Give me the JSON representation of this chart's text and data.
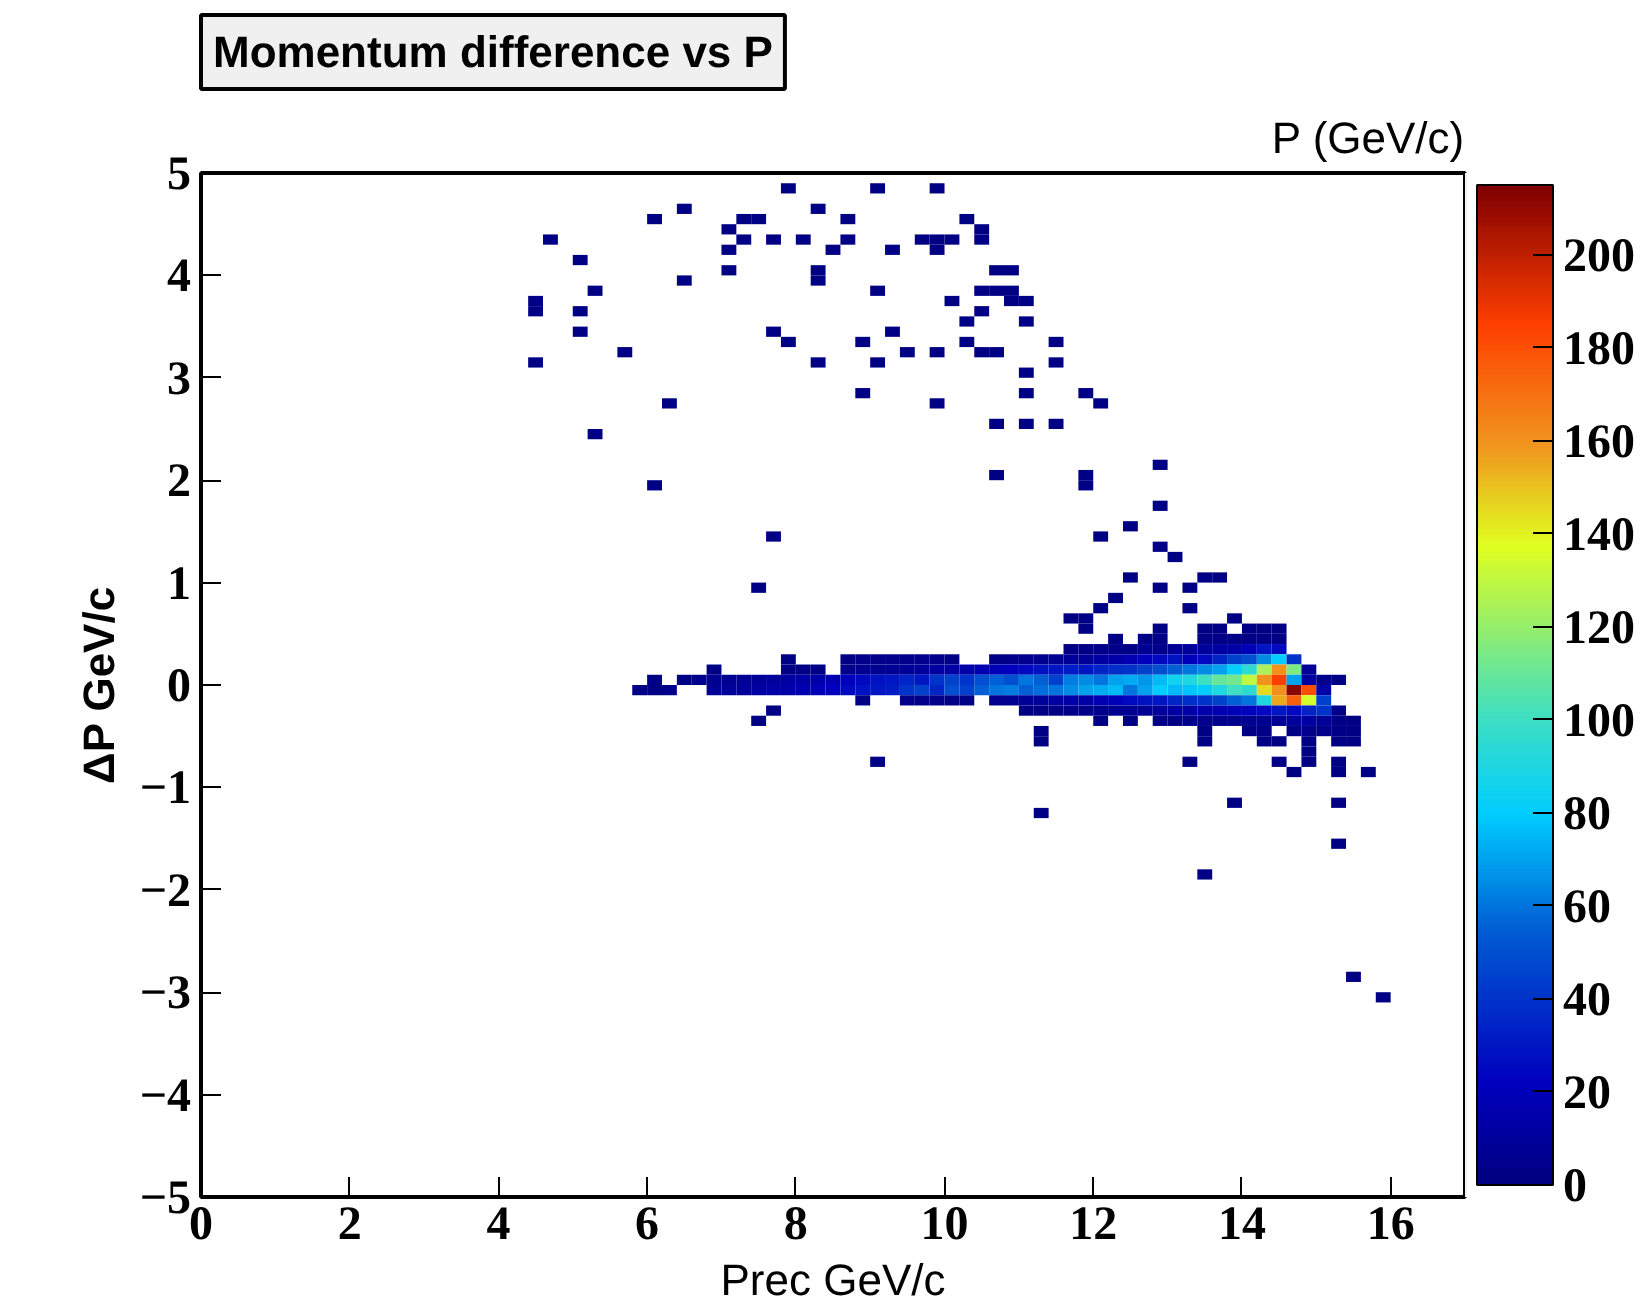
{
  "chart_data": {
    "type": "scatter",
    "title": "Momentum difference vs P",
    "annotations": [
      "P (GeV/c)"
    ],
    "xlabel": "Prec GeV/c",
    "ylabel": "ΔP GeV/c",
    "xlim": [
      0,
      17
    ],
    "ylim": [
      -5,
      5
    ],
    "xticks": [
      0,
      2,
      4,
      6,
      8,
      10,
      12,
      14,
      16
    ],
    "yticks": [
      -5,
      -4,
      -3,
      -2,
      -1,
      0,
      1,
      2,
      3,
      4,
      5
    ],
    "clim": [
      0,
      215
    ],
    "cticks": [
      0,
      20,
      40,
      60,
      80,
      100,
      120,
      140,
      160,
      180,
      200
    ],
    "marker": "square",
    "x": [
      7.9,
      9.1,
      9.9,
      6.1,
      6.5,
      8.3,
      7.3,
      7.5,
      8.7,
      10.3,
      4.7,
      7.1,
      7.3,
      7.7,
      8.1,
      8.7,
      9.7,
      9.9,
      10.1,
      10.5,
      10.5,
      5.1,
      7.1,
      8.5,
      9.3,
      9.9,
      7.1,
      8.3,
      8.3,
      10.7,
      10.9,
      6.5,
      5.3,
      9.1,
      10.5,
      10.7,
      10.9,
      10.1,
      10.9,
      11.1,
      4.5,
      4.5,
      5.1,
      10.5,
      10.3,
      11.1,
      5.1,
      7.7,
      9.3,
      5.7,
      7.9,
      8.9,
      10.3,
      11.5,
      4.5,
      8.3,
      9.1,
      9.5,
      9.9,
      10.5,
      10.7,
      11.5,
      11.1,
      8.9,
      11.1,
      11.9,
      6.3,
      9.9,
      12.1,
      10.7,
      11.1,
      11.5,
      5.3,
      12.9,
      10.7,
      11.9,
      11.9,
      6.1,
      12.9,
      12.5,
      7.7,
      12.1,
      12.9,
      13.1,
      7.5,
      12.5,
      13.5,
      13.7,
      12.9,
      13.3,
      12.3,
      12.1,
      13.3,
      11.7,
      11.9,
      13.9,
      11.9,
      12.9,
      13.5,
      13.7,
      14.1,
      14.3,
      14.5,
      14.9,
      9.1,
      13.3,
      14.5,
      14.9,
      15.3,
      14.7,
      15.3,
      15.7,
      13.9,
      15.3,
      11.3,
      15.3,
      13.5,
      15.5,
      15.9,
      12.3,
      12.7,
      12.9,
      13.5,
      13.7,
      13.9,
      14.1,
      14.3,
      14.5,
      11.7,
      11.9,
      12.1,
      12.3,
      12.5,
      12.7,
      12.9,
      13.1,
      13.3,
      13.5,
      13.7,
      13.9,
      14.1,
      14.3,
      14.5,
      7.9,
      8.7,
      8.9,
      9.1,
      9.3,
      9.5,
      9.7,
      9.9,
      10.1,
      10.7,
      10.9,
      11.1,
      11.3,
      11.5,
      11.7,
      11.9,
      12.1,
      12.3,
      12.5,
      12.7,
      12.9,
      13.1,
      13.3,
      13.5,
      13.7,
      13.9,
      14.1,
      14.3,
      14.5,
      14.7,
      6.9,
      7.9,
      8.1,
      8.3,
      8.7,
      8.9,
      9.1,
      9.3,
      9.5,
      9.7,
      9.9,
      10.1,
      10.3,
      10.5,
      10.7,
      10.9,
      11.1,
      11.3,
      11.5,
      11.7,
      11.9,
      12.1,
      12.3,
      12.5,
      12.7,
      12.9,
      13.1,
      13.3,
      13.5,
      13.7,
      13.9,
      14.1,
      14.3,
      14.5,
      14.7,
      14.9,
      6.1,
      6.5,
      6.7,
      6.9,
      7.1,
      7.3,
      7.5,
      7.7,
      7.9,
      8.1,
      8.3,
      8.5,
      8.7,
      8.9,
      9.1,
      9.3,
      9.5,
      9.7,
      9.9,
      10.1,
      10.3,
      10.5,
      10.7,
      10.9,
      11.1,
      11.3,
      11.5,
      11.7,
      11.9,
      12.1,
      12.3,
      12.5,
      12.7,
      12.9,
      13.1,
      13.3,
      13.5,
      13.7,
      13.9,
      14.1,
      14.3,
      14.5,
      14.7,
      14.9,
      15.1,
      15.3,
      5.9,
      6.1,
      6.3,
      6.9,
      7.1,
      7.3,
      7.5,
      7.7,
      7.9,
      8.1,
      8.3,
      8.5,
      8.7,
      8.9,
      9.1,
      9.3,
      9.5,
      9.7,
      9.9,
      10.1,
      10.3,
      10.5,
      10.7,
      10.9,
      11.1,
      11.3,
      11.5,
      11.7,
      11.9,
      12.1,
      12.3,
      12.5,
      12.7,
      12.9,
      13.1,
      13.3,
      13.5,
      13.7,
      13.9,
      14.1,
      14.3,
      14.5,
      14.7,
      14.9,
      15.1,
      8.9,
      9.5,
      9.7,
      9.9,
      10.1,
      10.3,
      10.7,
      10.9,
      11.1,
      11.3,
      11.5,
      11.7,
      11.9,
      12.1,
      12.3,
      12.5,
      12.7,
      12.9,
      13.1,
      13.3,
      13.5,
      13.7,
      13.9,
      14.1,
      14.3,
      14.5,
      14.7,
      14.9,
      15.1,
      7.7,
      11.1,
      11.3,
      11.5,
      11.7,
      11.9,
      12.1,
      12.3,
      12.5,
      12.7,
      12.9,
      13.1,
      13.3,
      13.5,
      13.7,
      13.9,
      14.1,
      14.3,
      14.5,
      14.7,
      14.9,
      15.1,
      15.3,
      7.5,
      12.1,
      12.5,
      12.9,
      13.1,
      13.3,
      13.5,
      13.7,
      13.9,
      14.1,
      14.3,
      14.5,
      14.7,
      14.9,
      15.1,
      15.3,
      15.5,
      11.3,
      13.5,
      14.1,
      14.3,
      14.7,
      14.9,
      15.1,
      15.3,
      15.5,
      11.3,
      13.5,
      14.3,
      14.5,
      14.9,
      15.3,
      15.5
    ],
    "values": [
      4.85,
      4.85,
      4.85,
      4.55,
      4.65,
      4.65,
      4.55,
      4.55,
      4.55,
      4.55,
      4.35,
      4.45,
      4.35,
      4.35,
      4.35,
      4.35,
      4.35,
      4.35,
      4.35,
      4.45,
      4.35,
      4.15,
      4.25,
      4.25,
      4.25,
      4.25,
      4.05,
      4.05,
      3.95,
      4.05,
      4.05,
      3.95,
      3.85,
      3.85,
      3.85,
      3.85,
      3.85,
      3.75,
      3.75,
      3.75,
      3.75,
      3.65,
      3.65,
      3.65,
      3.55,
      3.55,
      3.45,
      3.45,
      3.45,
      3.25,
      3.35,
      3.35,
      3.35,
      3.35,
      3.15,
      3.15,
      3.15,
      3.25,
      3.25,
      3.25,
      3.25,
      3.15,
      3.05,
      2.85,
      2.85,
      2.85,
      2.75,
      2.75,
      2.75,
      2.55,
      2.55,
      2.55,
      2.45,
      2.15,
      2.05,
      2.05,
      1.95,
      1.95,
      1.75,
      1.55,
      1.45,
      1.45,
      1.35,
      1.25,
      0.95,
      1.05,
      1.05,
      1.05,
      0.95,
      0.95,
      0.85,
      0.75,
      0.75,
      0.65,
      0.65,
      0.65,
      0.55,
      0.55,
      0.55,
      0.55,
      0.55,
      0.55,
      0.55,
      -0.65,
      -0.75,
      -0.75,
      -0.75,
      -0.75,
      -0.75,
      -0.85,
      -0.85,
      -0.85,
      -1.15,
      -1.15,
      -1.25,
      -1.55,
      -1.85,
      -2.85,
      -3.05,
      0.45,
      0.45,
      0.45,
      0.45,
      0.45,
      0.45,
      0.45,
      0.45,
      0.45,
      0.35,
      0.35,
      0.35,
      0.35,
      0.35,
      0.35,
      0.35,
      0.35,
      0.35,
      0.35,
      0.35,
      0.35,
      0.35,
      0.35,
      0.35,
      0.25,
      0.25,
      0.25,
      0.25,
      0.25,
      0.25,
      0.25,
      0.25,
      0.25,
      0.25,
      0.25,
      0.25,
      0.25,
      0.25,
      0.25,
      0.25,
      0.25,
      0.25,
      0.25,
      0.25,
      0.25,
      0.25,
      0.25,
      0.25,
      0.25,
      0.25,
      0.25,
      0.25,
      0.25,
      0.25,
      0.15,
      0.15,
      0.15,
      0.15,
      0.15,
      0.15,
      0.15,
      0.15,
      0.15,
      0.15,
      0.15,
      0.15,
      0.15,
      0.15,
      0.15,
      0.15,
      0.15,
      0.15,
      0.15,
      0.15,
      0.15,
      0.15,
      0.15,
      0.15,
      0.15,
      0.15,
      0.15,
      0.15,
      0.15,
      0.15,
      0.15,
      0.15,
      0.15,
      0.15,
      0.15,
      0.15,
      0.05,
      0.05,
      0.05,
      0.05,
      0.05,
      0.05,
      0.05,
      0.05,
      0.05,
      0.05,
      0.05,
      0.05,
      0.05,
      0.05,
      0.05,
      0.05,
      0.05,
      0.05,
      0.05,
      0.05,
      0.05,
      0.05,
      0.05,
      0.05,
      0.05,
      0.05,
      0.05,
      0.05,
      0.05,
      0.05,
      0.05,
      0.05,
      0.05,
      0.05,
      0.05,
      0.05,
      0.05,
      0.05,
      0.05,
      0.05,
      0.05,
      0.05,
      0.05,
      0.05,
      0.05,
      0.05,
      -0.05,
      -0.05,
      -0.05,
      -0.05,
      -0.05,
      -0.05,
      -0.05,
      -0.05,
      -0.05,
      -0.05,
      -0.05,
      -0.05,
      -0.05,
      -0.05,
      -0.05,
      -0.05,
      -0.05,
      -0.05,
      -0.05,
      -0.05,
      -0.05,
      -0.05,
      -0.05,
      -0.05,
      -0.05,
      -0.05,
      -0.05,
      -0.05,
      -0.05,
      -0.05,
      -0.05,
      -0.05,
      -0.05,
      -0.05,
      -0.05,
      -0.05,
      -0.05,
      -0.05,
      -0.05,
      -0.05,
      -0.05,
      -0.05,
      -0.05,
      -0.05,
      -0.05,
      -0.15,
      -0.15,
      -0.15,
      -0.15,
      -0.15,
      -0.15,
      -0.15,
      -0.15,
      -0.15,
      -0.15,
      -0.15,
      -0.15,
      -0.15,
      -0.15,
      -0.15,
      -0.15,
      -0.15,
      -0.15,
      -0.15,
      -0.15,
      -0.15,
      -0.15,
      -0.15,
      -0.15,
      -0.15,
      -0.15,
      -0.15,
      -0.15,
      -0.15,
      -0.25,
      -0.25,
      -0.25,
      -0.25,
      -0.25,
      -0.25,
      -0.25,
      -0.25,
      -0.25,
      -0.25,
      -0.25,
      -0.25,
      -0.25,
      -0.25,
      -0.25,
      -0.25,
      -0.25,
      -0.25,
      -0.25,
      -0.25,
      -0.25,
      -0.25,
      -0.25,
      -0.35,
      -0.35,
      -0.35,
      -0.35,
      -0.35,
      -0.35,
      -0.35,
      -0.35,
      -0.35,
      -0.35,
      -0.35,
      -0.35,
      -0.35,
      -0.35,
      -0.35,
      -0.35,
      -0.35,
      -0.45,
      -0.45,
      -0.45,
      -0.45,
      -0.45,
      -0.45,
      -0.45,
      -0.45,
      -0.45,
      -0.55,
      -0.55,
      -0.55,
      -0.55,
      -0.55,
      -0.55,
      -0.55
    ],
    "cvalues": [
      2,
      2,
      2,
      2,
      2,
      2,
      2,
      2,
      2,
      2,
      2,
      2,
      2,
      2,
      2,
      2,
      2,
      2,
      2,
      2,
      2,
      2,
      2,
      2,
      2,
      2,
      2,
      2,
      2,
      2,
      2,
      2,
      2,
      2,
      2,
      2,
      2,
      2,
      2,
      2,
      2,
      2,
      2,
      2,
      2,
      2,
      2,
      2,
      2,
      2,
      2,
      2,
      2,
      2,
      2,
      2,
      2,
      2,
      2,
      2,
      2,
      2,
      2,
      2,
      2,
      2,
      2,
      2,
      2,
      2,
      2,
      2,
      2,
      2,
      2,
      2,
      2,
      2,
      2,
      2,
      2,
      2,
      2,
      2,
      2,
      2,
      2,
      2,
      2,
      2,
      2,
      2,
      2,
      2,
      2,
      2,
      2,
      2,
      2,
      2,
      2,
      2,
      2,
      2,
      2,
      2,
      2,
      2,
      2,
      2,
      2,
      2,
      2,
      2,
      2,
      2,
      2,
      2,
      2,
      3,
      3,
      3,
      3,
      3,
      3,
      3,
      3,
      3,
      3,
      3,
      5,
      4,
      3,
      6,
      5,
      8,
      10,
      10,
      12,
      15,
      20,
      30,
      25,
      2,
      3,
      4,
      4,
      4,
      4,
      5,
      4,
      3,
      3,
      4,
      5,
      6,
      7,
      8,
      10,
      12,
      15,
      18,
      22,
      25,
      28,
      20,
      25,
      35,
      45,
      50,
      65,
      80,
      40,
      2,
      3,
      3,
      2,
      5,
      6,
      7,
      8,
      9,
      10,
      12,
      14,
      15,
      18,
      20,
      22,
      25,
      28,
      30,
      32,
      30,
      35,
      38,
      40,
      45,
      50,
      55,
      60,
      65,
      70,
      80,
      95,
      125,
      160,
      115,
      8,
      3,
      3,
      5,
      6,
      6,
      8,
      9,
      10,
      12,
      14,
      15,
      18,
      22,
      25,
      28,
      30,
      35,
      30,
      40,
      45,
      40,
      50,
      55,
      50,
      60,
      55,
      45,
      62,
      65,
      60,
      70,
      72,
      68,
      75,
      85,
      90,
      100,
      110,
      112,
      130,
      160,
      185,
      70,
      12,
      5,
      3,
      3,
      3,
      4,
      8,
      10,
      10,
      12,
      14,
      15,
      18,
      20,
      22,
      25,
      28,
      30,
      32,
      40,
      45,
      35,
      50,
      45,
      55,
      60,
      62,
      55,
      58,
      60,
      65,
      70,
      72,
      75,
      60,
      70,
      80,
      75,
      78,
      80,
      90,
      100,
      95,
      145,
      160,
      212,
      180,
      15,
      3,
      4,
      4,
      4,
      3,
      3,
      5,
      6,
      8,
      10,
      12,
      14,
      15,
      18,
      20,
      25,
      28,
      30,
      35,
      38,
      40,
      45,
      55,
      60,
      90,
      155,
      175,
      135,
      45,
      2,
      2,
      3,
      3,
      4,
      4,
      5,
      6,
      7,
      8,
      10,
      12,
      14,
      15,
      18,
      20,
      22,
      25,
      30,
      25,
      35,
      40,
      3,
      2,
      2,
      2,
      3,
      3,
      4,
      4,
      5,
      5,
      6,
      6,
      8,
      10,
      12,
      8,
      3,
      2,
      2,
      2,
      3,
      3,
      3,
      4,
      5,
      3,
      2,
      2,
      2,
      2,
      2,
      3,
      2,
      2
    ]
  }
}
